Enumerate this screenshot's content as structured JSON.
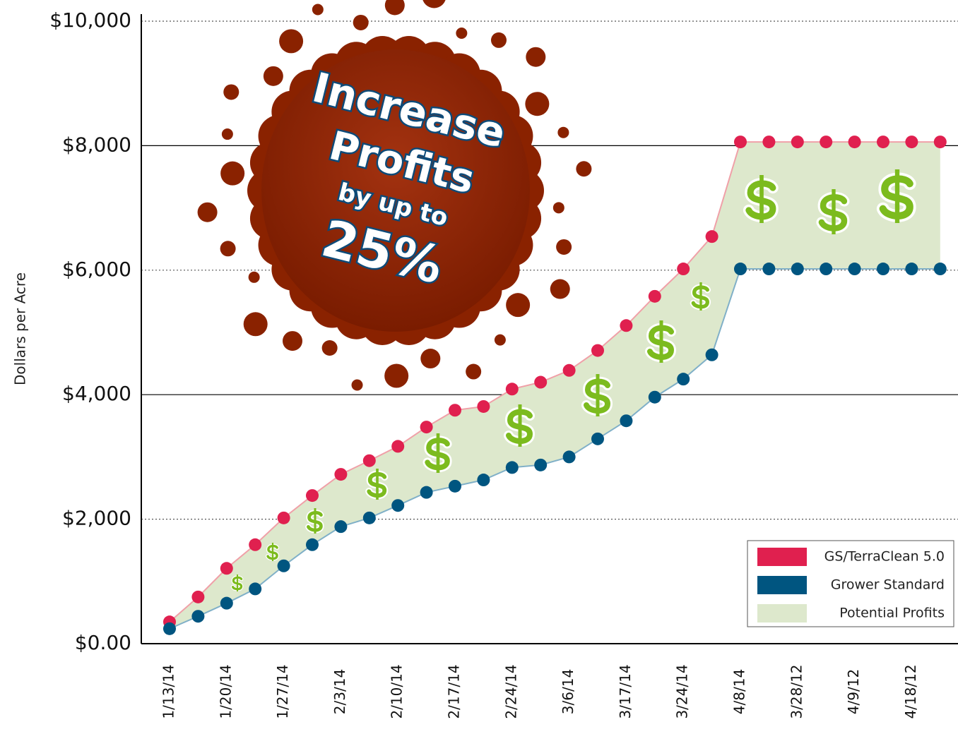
{
  "chart_data": {
    "type": "line",
    "y_label": "Dollars per Acre",
    "categories": [
      "1/13/14",
      null,
      "1/20/14",
      null,
      "1/27/14",
      null,
      "2/3/14",
      null,
      "2/10/14",
      null,
      "2/17/14",
      null,
      "2/24/14",
      null,
      "3/6/14",
      null,
      "3/17/14",
      null,
      "3/24/14",
      null,
      "4/8/14",
      null,
      "3/28/12",
      null,
      "4/9/12",
      null,
      "4/18/12",
      null
    ],
    "series": [
      {
        "name": "GS/TerraClean 5.0",
        "color": "#e0204f",
        "line_color": "#f0a0a8",
        "values": [
          350,
          750,
          1210,
          1590,
          2020,
          2380,
          2720,
          2940,
          3170,
          3480,
          3750,
          3810,
          4090,
          4200,
          4390,
          4710,
          5110,
          5580,
          6020,
          6540,
          8060,
          8060,
          8060,
          8060,
          8060,
          8060,
          8060,
          8060
        ]
      },
      {
        "name": "Grower Standard",
        "color": "#005580",
        "line_color": "#80b0c8",
        "values": [
          240,
          440,
          650,
          880,
          1250,
          1590,
          1880,
          2020,
          2220,
          2430,
          2530,
          2630,
          2830,
          2870,
          3000,
          3290,
          3580,
          3960,
          4250,
          4640,
          6020,
          6020,
          6020,
          6020,
          6020,
          6020,
          6020,
          6020
        ]
      }
    ],
    "area": {
      "name": "Potential Profits",
      "color": "#dde8cc"
    },
    "ylim": [
      0,
      10000
    ],
    "yticks": [
      {
        "value": 0,
        "label": "$0.00"
      },
      {
        "value": 2000,
        "label": "$2,000"
      },
      {
        "value": 4000,
        "label": "$4,000"
      },
      {
        "value": 6000,
        "label": "$6,000"
      },
      {
        "value": 8000,
        "label": "$8,000"
      },
      {
        "value": 10000,
        "label": "$10,000"
      }
    ],
    "grid": true,
    "legend": "lower right",
    "annotation": {
      "lines": [
        "Increase",
        "Profits",
        "by up to",
        "25%"
      ],
      "color": "#8a2200"
    }
  }
}
